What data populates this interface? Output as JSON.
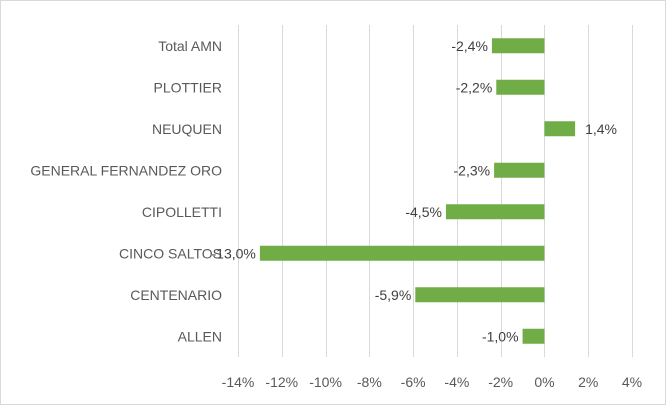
{
  "chart_data": {
    "type": "bar",
    "orientation": "horizontal",
    "categories": [
      "Total AMN",
      "PLOTTIER",
      "NEUQUEN",
      "GENERAL FERNANDEZ ORO",
      "CIPOLLETTI",
      "CINCO SALTOS",
      "CENTENARIO",
      "ALLEN"
    ],
    "values": [
      -2.4,
      -2.2,
      1.4,
      -2.3,
      -4.5,
      -13.0,
      -5.9,
      -1.0
    ],
    "data_labels": [
      "-2,4%",
      "-2,2%",
      "1,4%",
      "-2,3%",
      "-4,5%",
      "-13,0%",
      "-5,9%",
      "-1,0%"
    ],
    "xlim": [
      -14,
      4
    ],
    "xticks": [
      -14,
      -12,
      -10,
      -8,
      -6,
      -4,
      -2,
      0,
      2,
      4
    ],
    "xtick_labels": [
      "-14%",
      "-12%",
      "-10%",
      "-8%",
      "-6%",
      "-4%",
      "-2%",
      "0%",
      "2%",
      "4%"
    ],
    "bar_color": "#70ad47",
    "grid": true,
    "legend": "none",
    "title": "",
    "xlabel": "",
    "ylabel": ""
  }
}
